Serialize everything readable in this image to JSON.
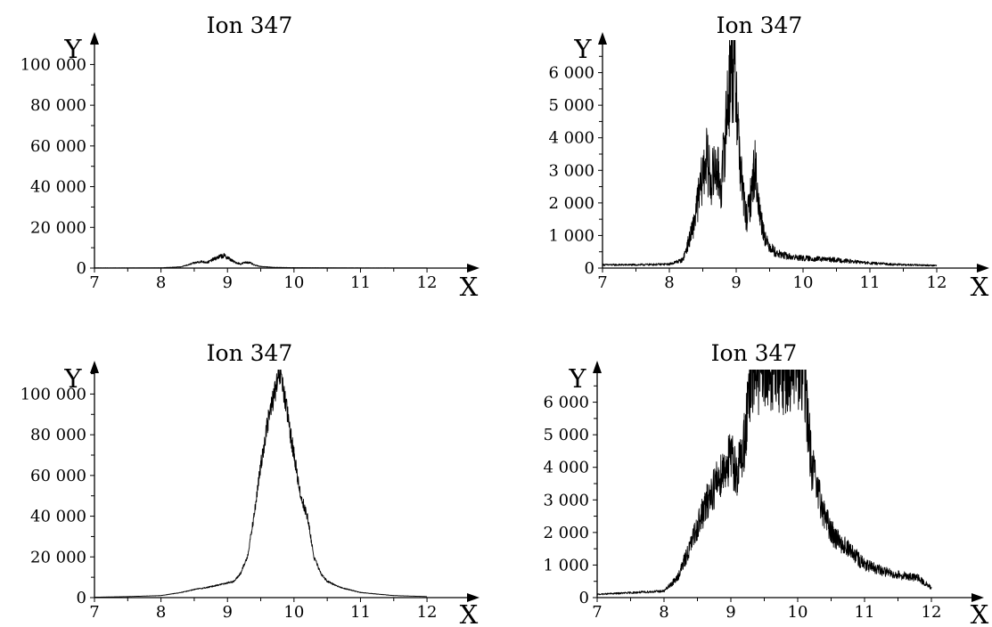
{
  "chart_data": [
    {
      "type": "line",
      "title": "Ion 347",
      "xlabel": "X",
      "ylabel": "Y",
      "xlim": [
        7,
        12.2
      ],
      "ylim": [
        0,
        112000
      ],
      "x_ticks": [
        7,
        8,
        9,
        10,
        11,
        12
      ],
      "x_tick_labels": [
        "7",
        "8",
        "9",
        "10",
        "11",
        "12"
      ],
      "y_ticks": [
        0,
        20000,
        40000,
        60000,
        80000,
        100000
      ],
      "y_tick_labels": [
        "0",
        "20 000",
        "40 000",
        "60 000",
        "80 000",
        "100 000"
      ],
      "series": [
        {
          "x": [
            7.0,
            7.5,
            8.0,
            8.3,
            8.4,
            8.5,
            8.6,
            8.7,
            8.8,
            8.9,
            8.95,
            9.0,
            9.1,
            9.2,
            9.25,
            9.3,
            9.35,
            9.4,
            9.5,
            9.7,
            10.0,
            10.5,
            11.0,
            12.0
          ],
          "y": [
            100,
            100,
            150,
            600,
            1500,
            2500,
            3200,
            2800,
            4500,
            5800,
            6000,
            5200,
            3000,
            2000,
            2600,
            2900,
            2400,
            1500,
            800,
            350,
            200,
            150,
            100,
            80
          ],
          "noise": 0.2
        }
      ]
    },
    {
      "type": "line",
      "title": "Ion 347",
      "xlabel": "X",
      "ylabel": "Y",
      "xlim": [
        7,
        12.2
      ],
      "ylim": [
        0,
        7000
      ],
      "x_ticks": [
        7,
        8,
        9,
        10,
        11,
        12
      ],
      "x_tick_labels": [
        "7",
        "8",
        "9",
        "10",
        "11",
        "12"
      ],
      "y_ticks": [
        0,
        1000,
        2000,
        3000,
        4000,
        5000,
        6000
      ],
      "y_tick_labels": [
        "0",
        "1 000",
        "2 000",
        "3 000",
        "4 000",
        "5 000",
        "6 000"
      ],
      "series": [
        {
          "x": [
            7.0,
            7.5,
            8.0,
            8.2,
            8.35,
            8.45,
            8.55,
            8.62,
            8.7,
            8.78,
            8.85,
            8.9,
            8.95,
            9.0,
            9.05,
            9.1,
            9.15,
            9.2,
            9.28,
            9.35,
            9.45,
            9.6,
            9.8,
            10.0,
            10.5,
            11.0,
            11.5,
            12.0
          ],
          "y": [
            100,
            100,
            120,
            250,
            1200,
            2300,
            3400,
            2700,
            3100,
            2500,
            4500,
            5800,
            6200,
            5600,
            3500,
            2300,
            1500,
            1900,
            3200,
            1700,
            800,
            450,
            350,
            300,
            250,
            150,
            100,
            80
          ],
          "noise": 0.3
        }
      ]
    },
    {
      "type": "line",
      "title": "Ion 347",
      "xlabel": "X",
      "ylabel": "Y",
      "xlim": [
        7,
        12.2
      ],
      "ylim": [
        0,
        112000
      ],
      "x_ticks": [
        7,
        8,
        9,
        10,
        11,
        12
      ],
      "x_tick_labels": [
        "7",
        "8",
        "9",
        "10",
        "11",
        "12"
      ],
      "y_ticks": [
        0,
        20000,
        40000,
        60000,
        80000,
        100000
      ],
      "y_tick_labels": [
        "0",
        "20 000",
        "40 000",
        "60 000",
        "80 000",
        "100 000"
      ],
      "series": [
        {
          "x": [
            7.0,
            7.5,
            8.0,
            8.3,
            8.5,
            8.7,
            8.9,
            9.1,
            9.2,
            9.3,
            9.4,
            9.5,
            9.6,
            9.7,
            9.75,
            9.8,
            9.85,
            9.9,
            9.95,
            10.0,
            10.1,
            10.2,
            10.25,
            10.3,
            10.4,
            10.5,
            10.7,
            11.0,
            11.5,
            12.0
          ],
          "y": [
            200,
            500,
            1000,
            2500,
            4000,
            5000,
            6500,
            8000,
            12000,
            20000,
            40000,
            65000,
            85000,
            100000,
            105000,
            110000,
            100000,
            90000,
            80000,
            70000,
            50000,
            40000,
            30000,
            20000,
            12000,
            8000,
            5000,
            2500,
            1000,
            500
          ],
          "noise": 0.06
        }
      ]
    },
    {
      "type": "line",
      "title": "Ion 347",
      "xlabel": "X",
      "ylabel": "Y",
      "xlim": [
        7,
        12.2
      ],
      "ylim": [
        0,
        7000
      ],
      "x_ticks": [
        7,
        8,
        9,
        10,
        11,
        12
      ],
      "x_tick_labels": [
        "7",
        "8",
        "9",
        "10",
        "11",
        "12"
      ],
      "y_ticks": [
        0,
        1000,
        2000,
        3000,
        4000,
        5000,
        6000
      ],
      "y_tick_labels": [
        "0",
        "1 000",
        "2 000",
        "3 000",
        "4 000",
        "5 000",
        "6 000"
      ],
      "series": [
        {
          "x": [
            7.0,
            7.5,
            8.0,
            8.2,
            8.4,
            8.5,
            8.6,
            8.7,
            8.8,
            8.9,
            9.0,
            9.1,
            9.2,
            9.3,
            9.35,
            10.1,
            10.15,
            10.2,
            10.3,
            10.4,
            10.5,
            10.7,
            10.9,
            11.0,
            11.3,
            11.5,
            11.8,
            12.0
          ],
          "y": [
            100,
            150,
            200,
            600,
            1600,
            2200,
            2700,
            3200,
            3600,
            4000,
            4300,
            3800,
            4800,
            6600,
            7000,
            7000,
            5500,
            4200,
            3200,
            2600,
            2000,
            1600,
            1200,
            1000,
            800,
            700,
            600,
            300
          ],
          "noise": 0.2
        }
      ]
    }
  ]
}
